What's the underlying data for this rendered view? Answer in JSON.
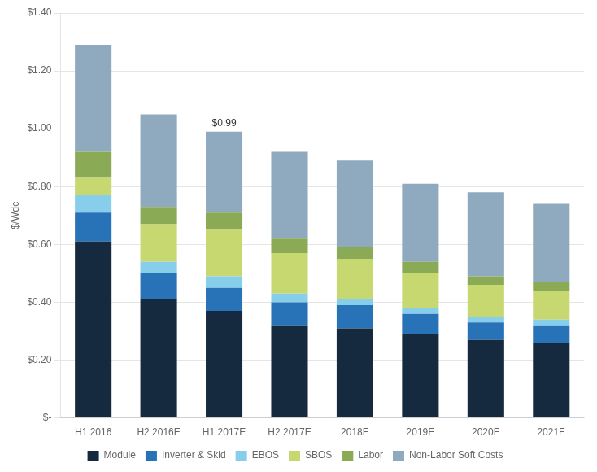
{
  "chart_data": {
    "type": "bar",
    "stacked": true,
    "categories": [
      "H1 2016",
      "H2 2016E",
      "H1 2017E",
      "H2 2017E",
      "2018E",
      "2019E",
      "2020E",
      "2021E"
    ],
    "series": [
      {
        "name": "Module",
        "color": "#152a3e",
        "values": [
          0.61,
          0.41,
          0.37,
          0.32,
          0.31,
          0.29,
          0.27,
          0.26
        ]
      },
      {
        "name": "Inverter & Skid",
        "color": "#2872b8",
        "values": [
          0.1,
          0.09,
          0.08,
          0.08,
          0.08,
          0.07,
          0.06,
          0.06
        ]
      },
      {
        "name": "EBOS",
        "color": "#87ceeb",
        "values": [
          0.06,
          0.04,
          0.04,
          0.03,
          0.02,
          0.02,
          0.02,
          0.02
        ]
      },
      {
        "name": "SBOS",
        "color": "#c8d870",
        "values": [
          0.06,
          0.13,
          0.16,
          0.14,
          0.14,
          0.12,
          0.11,
          0.1
        ]
      },
      {
        "name": "Labor",
        "color": "#8aaa55",
        "values": [
          0.09,
          0.06,
          0.06,
          0.05,
          0.04,
          0.04,
          0.03,
          0.03
        ]
      },
      {
        "name": "Non-Labor Soft Costs",
        "color": "#8fa9be",
        "values": [
          0.37,
          0.32,
          0.28,
          0.3,
          0.3,
          0.27,
          0.29,
          0.27
        ]
      }
    ],
    "annotations": [
      {
        "text": "$0.99",
        "x": "H1 2017E",
        "y": 0.99
      }
    ],
    "ylabel": "$/Wdc",
    "ylim": [
      0,
      1.4
    ],
    "yticks": [
      {
        "value": 0,
        "label": "$-"
      },
      {
        "value": 0.2,
        "label": "$0.20"
      },
      {
        "value": 0.4,
        "label": "$0.40"
      },
      {
        "value": 0.6,
        "label": "$0.60"
      },
      {
        "value": 0.8,
        "label": "$0.80"
      },
      {
        "value": 1.0,
        "label": "$1.00"
      },
      {
        "value": 1.2,
        "label": "$1.20"
      },
      {
        "value": 1.4,
        "label": "$1.40"
      }
    ],
    "grid": true,
    "legend": "bottom"
  }
}
